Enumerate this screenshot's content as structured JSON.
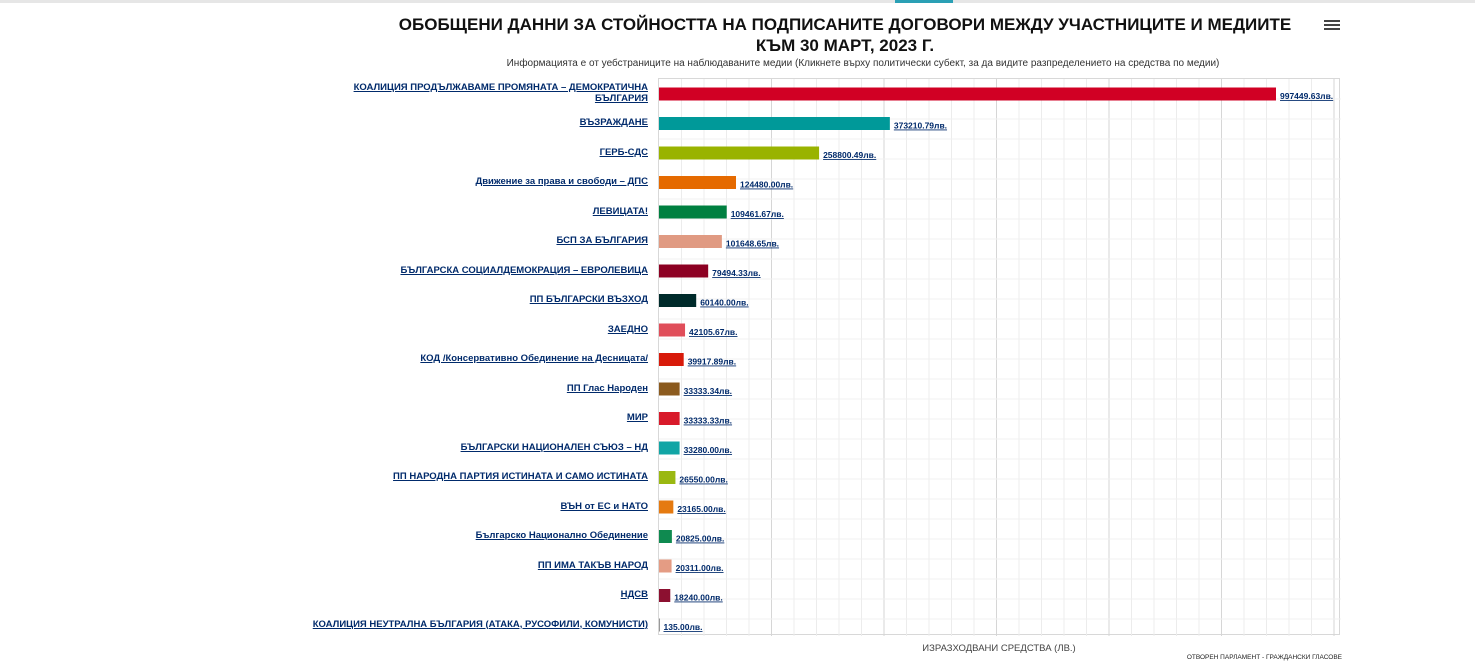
{
  "header": {
    "title_line1": "ОБОБЩЕНИ ДАННИ ЗА СТОЙНОСТТА НА ПОДПИСАНИТЕ ДОГОВОРИ МЕЖДУ УЧАСТНИЦИТЕ И МЕДИИТЕ",
    "title_line2": "КЪМ 30 МАРТ, 2023 Г.",
    "subtitle": "Информацията е от уебстраниците на наблюдаваните медии (Кликнете върху политически субект, за да видите разпределението на средства по медии)",
    "menu_icon": "hamburger-menu-icon"
  },
  "credit": "ОТВОРЕН ПАРЛАМЕНТ - ГРАЖДАНСКИ ГЛАСОВЕ",
  "chart_data": {
    "type": "bar",
    "orientation": "horizontal",
    "title": "ОБОБЩЕНИ ДАННИ ЗА СТОЙНОСТТА НА ПОДПИСАНИТЕ ДОГОВОРИ МЕЖДУ УЧАСТНИЦИТЕ И МЕДИИТЕ КЪМ 30 МАРТ, 2023 Г.",
    "xlabel": "ИЗРАЗХОДВАНИ СРЕДСТВА (ЛВ.)",
    "ylabel": "",
    "grid": true,
    "categories": [
      "КОАЛИЦИЯ ПРОДЪЛЖАВАМЕ ПРОМЯНАТА – ДЕМОКРАТИЧНА БЪЛГАРИЯ",
      "ВЪЗРАЖДАНЕ",
      "ГЕРБ-СДС",
      "Движение за права и свободи – ДПС",
      "ЛЕВИЦАТА!",
      "БСП ЗА БЪЛГАРИЯ",
      "БЪЛГАРСКА СОЦИАЛДЕМОКРАЦИЯ – ЕВРОЛЕВИЦА",
      "ПП БЪЛГАРСКИ ВЪЗХОД",
      "ЗАЕДНО",
      "КОД /Консервативно Обединение на Десницата/",
      "ПП Глас Народен",
      "МИР",
      "БЪЛГАРСКИ НАЦИОНАЛЕН СЪЮЗ – НД",
      "ПП НАРОДНА ПАРТИЯ ИСТИНАТА И САМО ИСТИНАТА",
      "ВЪН от ЕС и НАТО",
      "Българско Национално Обединение",
      "ПП ИМА ТАКЪВ НАРОД",
      "НДСВ",
      "КОАЛИЦИЯ НЕУТРАЛНА БЪЛГАРИЯ (АТАКА, РУСОФИЛИ, КОМУНИСТИ)"
    ],
    "values": [
      997449.63,
      373210.79,
      258800.49,
      124480.0,
      109461.67,
      101648.65,
      79494.33,
      60140.0,
      42105.67,
      39917.89,
      33333.34,
      33333.33,
      33280.0,
      26550.0,
      23165.0,
      20825.0,
      20311.0,
      18240.0,
      135.0
    ],
    "data_labels": [
      "997449.63лв.",
      "373210.79лв.",
      "258800.49лв.",
      "124480.00лв.",
      "109461.67лв.",
      "101648.65лв.",
      "79494.33лв.",
      "60140.00лв.",
      "42105.67лв.",
      "39917.89лв.",
      "33333.34лв.",
      "33333.33лв.",
      "33280.00лв.",
      "26550.00лв.",
      "23165.00лв.",
      "20825.00лв.",
      "20311.00лв.",
      "18240.00лв.",
      "135.00лв."
    ],
    "colors": [
      "#d10024",
      "#009999",
      "#99b300",
      "#e56a00",
      "#008040",
      "#e09a82",
      "#8c0022",
      "#002b2b",
      "#e04e5a",
      "#d81a0a",
      "#8b5a1e",
      "#d81a2a",
      "#11a5a5",
      "#9ab811",
      "#e57a10",
      "#0f8a50",
      "#e49c84",
      "#8c1030",
      "#333333"
    ],
    "xlim": [
      0,
      1050000
    ]
  }
}
